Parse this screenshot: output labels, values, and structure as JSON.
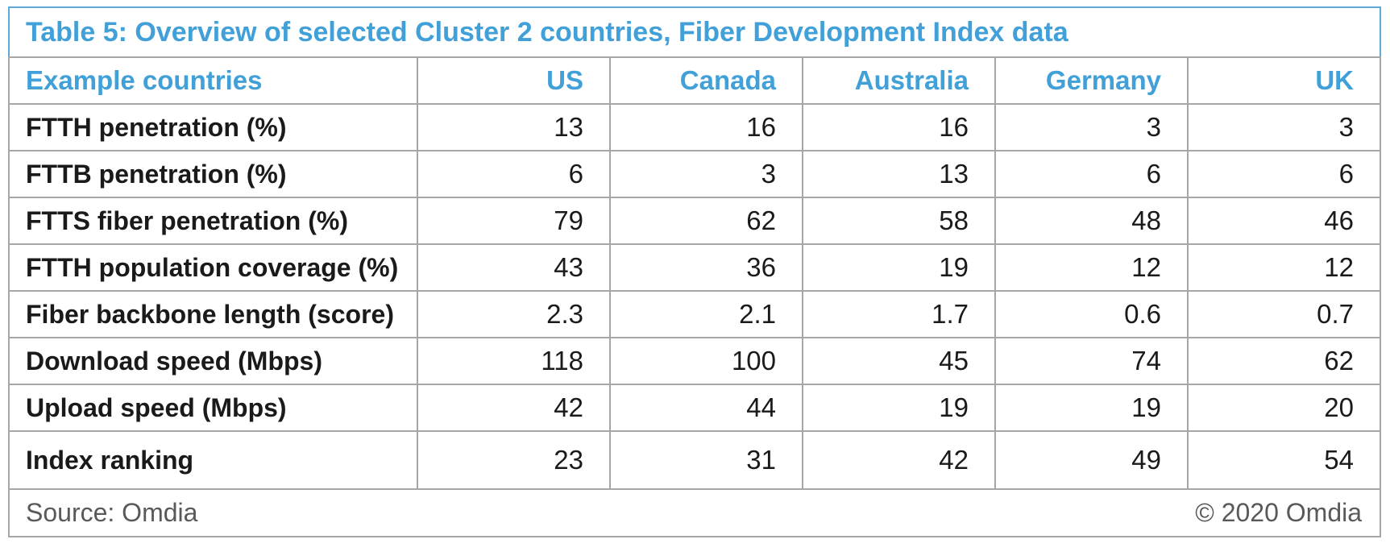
{
  "table": {
    "title": "Table 5: Overview of selected Cluster 2 countries, Fiber Development Index data",
    "columns": [
      "Example countries",
      "US",
      "Canada",
      "Australia",
      "Germany",
      "UK"
    ],
    "rows": [
      {
        "label": "FTTH penetration (%)",
        "values": [
          "13",
          "16",
          "16",
          "3",
          "3"
        ]
      },
      {
        "label": "FTTB penetration (%)",
        "values": [
          "6",
          "3",
          "13",
          "6",
          "6"
        ]
      },
      {
        "label": "FTTS fiber penetration (%)",
        "values": [
          "79",
          "62",
          "58",
          "48",
          "46"
        ]
      },
      {
        "label": "FTTH population coverage (%)",
        "values": [
          "43",
          "36",
          "19",
          "12",
          "12"
        ]
      },
      {
        "label": "Fiber backbone length (score)",
        "values": [
          "2.3",
          "2.1",
          "1.7",
          "0.6",
          "0.7"
        ]
      },
      {
        "label": "Download speed (Mbps)",
        "values": [
          "118",
          "100",
          "45",
          "74",
          "62"
        ]
      },
      {
        "label": "Upload speed (Mbps)",
        "values": [
          "42",
          "44",
          "19",
          "19",
          "20"
        ]
      },
      {
        "label": "Index ranking",
        "values": [
          "23",
          "31",
          "42",
          "49",
          "54"
        ]
      }
    ],
    "footer": {
      "source": "Source: Omdia",
      "copyright": "© 2020 Omdia"
    }
  },
  "colors": {
    "accent_blue_text": "#41a0d8",
    "title_border_blue": "#5fa8d8",
    "grid_gray": "#a6a6a6",
    "body_text": "#1a1a1a",
    "footer_gray": "#595959"
  },
  "chart_data": {
    "type": "table",
    "title": "Table 5: Overview of selected Cluster 2 countries, Fiber Development Index data",
    "categories": [
      "US",
      "Canada",
      "Australia",
      "Germany",
      "UK"
    ],
    "series": [
      {
        "name": "FTTH penetration (%)",
        "values": [
          13,
          16,
          16,
          3,
          3
        ]
      },
      {
        "name": "FTTB penetration (%)",
        "values": [
          6,
          3,
          13,
          6,
          6
        ]
      },
      {
        "name": "FTTS fiber penetration (%)",
        "values": [
          79,
          62,
          58,
          48,
          46
        ]
      },
      {
        "name": "FTTH population coverage (%)",
        "values": [
          43,
          36,
          19,
          12,
          12
        ]
      },
      {
        "name": "Fiber backbone length (score)",
        "values": [
          2.3,
          2.1,
          1.7,
          0.6,
          0.7
        ]
      },
      {
        "name": "Download speed (Mbps)",
        "values": [
          118,
          100,
          45,
          74,
          62
        ]
      },
      {
        "name": "Upload speed (Mbps)",
        "values": [
          42,
          44,
          19,
          19,
          20
        ]
      },
      {
        "name": "Index ranking",
        "values": [
          23,
          31,
          42,
          49,
          54
        ]
      }
    ],
    "source": "Source: Omdia",
    "copyright": "© 2020 Omdia"
  }
}
